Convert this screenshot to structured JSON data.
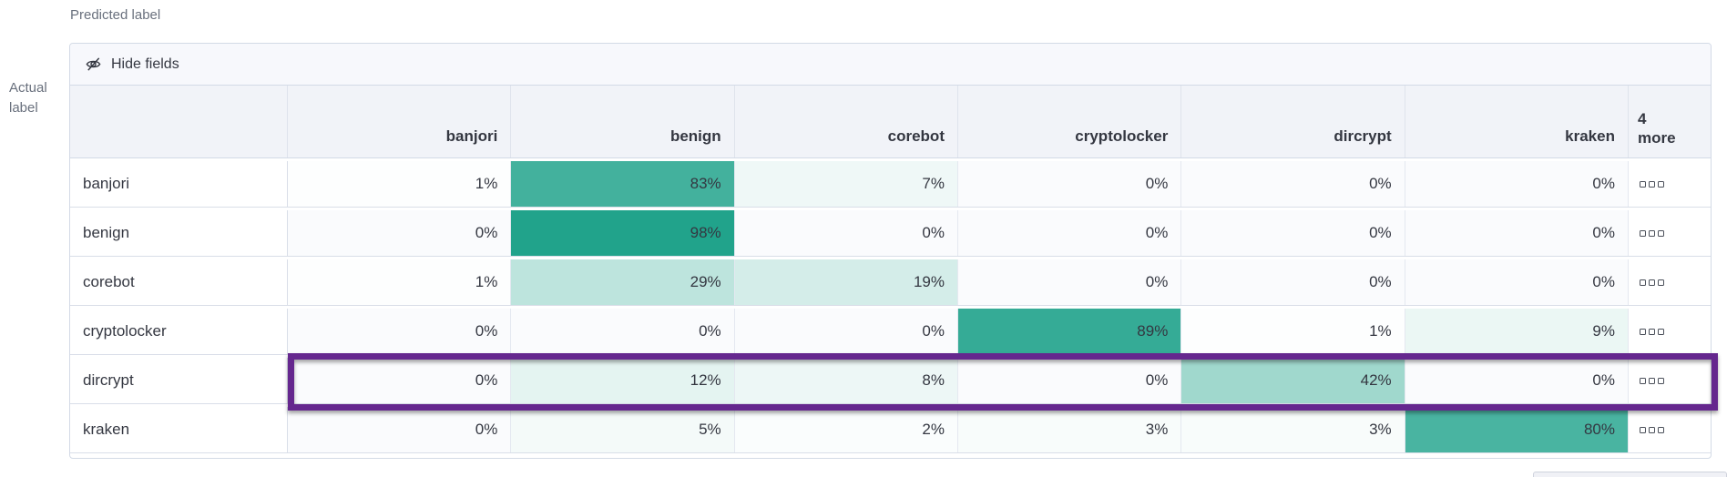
{
  "axis": {
    "predicted": "Predicted label",
    "actual_line1": "Actual",
    "actual_line2": "label"
  },
  "toolbar": {
    "hide_fields_label": "Hide fields"
  },
  "grid": {
    "columns": [
      "banjori",
      "benign",
      "corebot",
      "cryptolocker",
      "dircrypt",
      "kraken"
    ],
    "more_header": {
      "count": "4",
      "word": "more"
    },
    "value_suffix": "%",
    "rows": [
      {
        "label": "banjori",
        "values": [
          1,
          83,
          7,
          0,
          0,
          0
        ],
        "highlighted": false
      },
      {
        "label": "benign",
        "values": [
          0,
          98,
          0,
          0,
          0,
          0
        ],
        "highlighted": false
      },
      {
        "label": "corebot",
        "values": [
          1,
          29,
          19,
          0,
          0,
          0
        ],
        "highlighted": false
      },
      {
        "label": "cryptolocker",
        "values": [
          0,
          0,
          0,
          89,
          1,
          9
        ],
        "highlighted": false
      },
      {
        "label": "dircrypt",
        "values": [
          0,
          12,
          8,
          0,
          42,
          0
        ],
        "highlighted": true
      },
      {
        "label": "kraken",
        "values": [
          0,
          5,
          2,
          3,
          3,
          80
        ],
        "highlighted": false
      }
    ],
    "row_actions_icon": "boxes-horizontal-icon"
  },
  "colors": {
    "heat_max": "#1CA189",
    "zero_cell": "#FAFBFD",
    "highlight_border": "#65278E",
    "header_bg": "#F1F3F8",
    "toolbar_bg": "#F7F8FC",
    "panel_border": "#D3DAE6",
    "text": "#343741",
    "muted_text": "#69707D"
  }
}
